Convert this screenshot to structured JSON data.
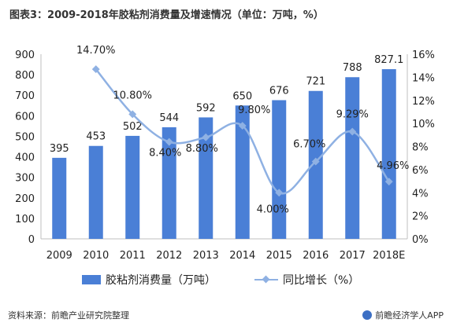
{
  "chart_data": {
    "type": "bar",
    "title": "图表3：2009-2018年胶粘剂消费量及增速情况（单位：万吨，%）",
    "categories": [
      "2009",
      "2010",
      "2011",
      "2012",
      "2013",
      "2014",
      "2015",
      "2016",
      "2017",
      "2018E"
    ],
    "series": [
      {
        "name": "胶粘剂消费量（万吨）",
        "type": "bar",
        "axis": "left",
        "color": "#4a7fd6",
        "values": [
          395,
          453,
          502,
          544,
          592,
          650,
          676,
          721,
          788,
          827.1
        ],
        "labels": [
          "395",
          "453",
          "502",
          "544",
          "592",
          "650",
          "676",
          "721",
          "788",
          "827.1"
        ]
      },
      {
        "name": "同比增长（%）",
        "type": "line",
        "axis": "right",
        "color": "#8fb1e3",
        "values": [
          null,
          14.7,
          10.8,
          8.4,
          8.8,
          9.8,
          4.0,
          6.7,
          9.29,
          4.96
        ],
        "labels": [
          "",
          "14.70%",
          "10.80%",
          "8.40%",
          "8.80%",
          "9.80%",
          "4.00%",
          "6.70%",
          "9.29%",
          "4.96%"
        ]
      }
    ],
    "ylim": [
      0,
      900
    ],
    "yticks": [
      "0",
      "100",
      "200",
      "300",
      "400",
      "500",
      "600",
      "700",
      "800",
      "900"
    ],
    "y2lim": [
      0,
      16
    ],
    "y2ticks": [
      "0%",
      "2%",
      "4%",
      "6%",
      "8%",
      "10%",
      "12%",
      "14%",
      "16%"
    ],
    "legend": "bottom",
    "grid": false
  },
  "footer": {
    "source": "资料来源：前瞻产业研究院整理",
    "brand": "前瞻经济学人APP"
  }
}
